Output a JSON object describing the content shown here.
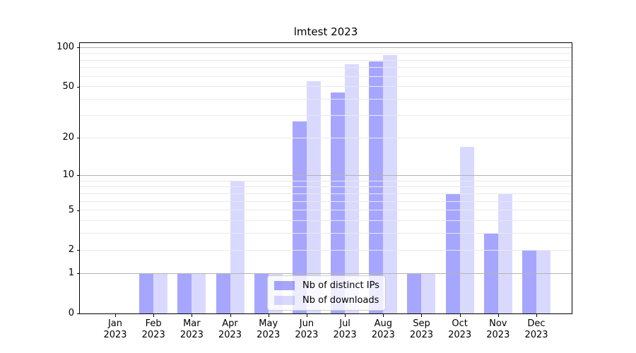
{
  "chart_data": {
    "type": "bar",
    "title": "lmtest 2023",
    "categories": [
      [
        "Jan",
        "2023"
      ],
      [
        "Feb",
        "2023"
      ],
      [
        "Mar",
        "2023"
      ],
      [
        "Apr",
        "2023"
      ],
      [
        "May",
        "2023"
      ],
      [
        "Jun",
        "2023"
      ],
      [
        "Jul",
        "2023"
      ],
      [
        "Aug",
        "2023"
      ],
      [
        "Sep",
        "2023"
      ],
      [
        "Oct",
        "2023"
      ],
      [
        "Nov",
        "2023"
      ],
      [
        "Dec",
        "2023"
      ]
    ],
    "series": [
      {
        "name": "Nb of distinct IPs",
        "color": "rgba(0,0,255,0.35)",
        "values": [
          0,
          1,
          1,
          1,
          1,
          27,
          45,
          78,
          1,
          7,
          3,
          2
        ]
      },
      {
        "name": "Nb of downloads",
        "color": "rgba(0,0,255,0.15)",
        "values": [
          0,
          1,
          1,
          9,
          1,
          55,
          74,
          88,
          1,
          17,
          7,
          2
        ]
      }
    ],
    "y_axis": {
      "scale": "log1p",
      "ticks": [
        0,
        1,
        2,
        5,
        10,
        20,
        50,
        100
      ],
      "ylim": [
        0,
        108
      ],
      "gridlines_major": [
        1,
        10,
        100
      ],
      "gridlines_minor": [
        2,
        3,
        4,
        5,
        6,
        7,
        8,
        9,
        20,
        30,
        40,
        50,
        60,
        70,
        80,
        90
      ]
    },
    "legend_position": "lower-left-of-center",
    "grid": true,
    "colors": {
      "grid_major": "#b3b3b3",
      "grid_minor": "#e9e9e9",
      "spine": "#000000",
      "background": "#ffffff",
      "text": "#000000"
    }
  }
}
